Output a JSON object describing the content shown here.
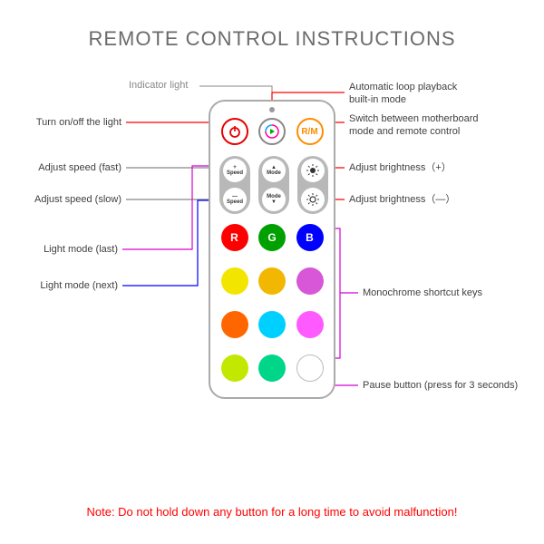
{
  "title": "REMOTE CONTROL INSTRUCTIONS",
  "title_color": "#6b6b6b",
  "note": "Note: Do not hold down any button for a long time to avoid malfunction!",
  "note_color": "#ff0000",
  "remote": {
    "border_color": "#aaaaaa",
    "background": "#ffffff"
  },
  "labels": {
    "indicator": {
      "text": "Indicator light",
      "color": "#888888"
    },
    "auto_loop": {
      "text": "Automatic loop playback\nbuilt-in mode",
      "color": "#404040"
    },
    "rm_switch": {
      "text": "Switch between motherboard\nmode and remote control",
      "color": "#404040"
    },
    "power": {
      "text": "Turn on/off the light",
      "color": "#404040"
    },
    "speed_fast": {
      "text": "Adjust speed (fast)",
      "color": "#404040"
    },
    "speed_slow": {
      "text": "Adjust speed (slow)",
      "color": "#404040"
    },
    "bright_up": {
      "text": "Adjust brightness（+）",
      "color": "#404040"
    },
    "bright_down": {
      "text": "Adjust brightness（—）",
      "color": "#404040"
    },
    "mode_last": {
      "text": "Light mode (last)",
      "color": "#404040"
    },
    "mode_next": {
      "text": "Light mode (next)",
      "color": "#404040"
    },
    "mono": {
      "text": "Monochrome shortcut keys",
      "color": "#404040"
    },
    "pause": {
      "text": "Pause button (press for 3 seconds)",
      "color": "#404040"
    }
  },
  "top_row": {
    "power": {
      "ring": "#e60000",
      "icon": "#e60000"
    },
    "play": {
      "ring": "#888888"
    },
    "rm": {
      "ring": "#ff8c00",
      "text": "R/M",
      "text_color": "#ff8c00"
    }
  },
  "pill_labels": {
    "speed_plus": "+\nSpeed",
    "speed_minus": "—\nSpeed",
    "mode_up": "▲\nMode",
    "mode_down": "Mode\n▼"
  },
  "color_grid": [
    [
      {
        "fill": "#ff0000",
        "letter": "R"
      },
      {
        "fill": "#00a000",
        "letter": "G"
      },
      {
        "fill": "#0000ff",
        "letter": "B"
      }
    ],
    [
      {
        "fill": "#f2e600"
      },
      {
        "fill": "#f2b700"
      },
      {
        "fill": "#d856d8"
      }
    ],
    [
      {
        "fill": "#ff6600"
      },
      {
        "fill": "#00d0ff"
      },
      {
        "fill": "#ff5aff"
      }
    ],
    [
      {
        "fill": "#c2e800"
      },
      {
        "fill": "#00d68a"
      },
      {
        "fill": "#ffffff",
        "stroke": "#bbbbbb"
      }
    ]
  ],
  "callout_colors": {
    "red": "#ff0000",
    "gray": "#888888",
    "magenta": "#d400d4",
    "blue": "#0000ff"
  }
}
